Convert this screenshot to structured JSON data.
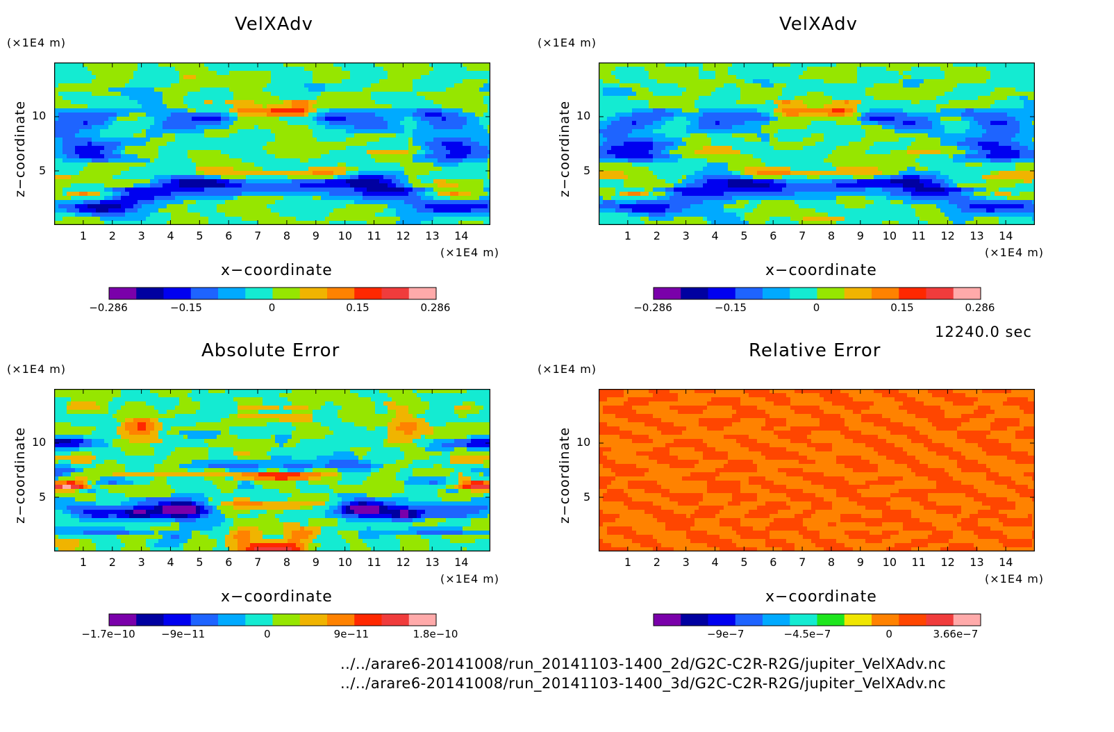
{
  "time_label": "12240.0 sec",
  "file_paths": [
    "../../arare6-20141008/run_20141103-1400_2d/G2C-C2R-R2G/jupiter_VelXAdv.nc",
    "../../arare6-20141008/run_20141103-1400_3d/G2C-C2R-R2G/jupiter_VelXAdv.nc"
  ],
  "chart_data": [
    {
      "type": "heatmap",
      "title": "VelXAdv",
      "xlabel": "x−coordinate",
      "ylabel": "z−coordinate",
      "x_unit": "(×1E4 m)",
      "y_unit": "(×1E4 m)",
      "xlim": [
        0,
        15
      ],
      "ylim": [
        0,
        15
      ],
      "x_ticks": [
        "1",
        "2",
        "3",
        "4",
        "5",
        "6",
        "7",
        "8",
        "9",
        "10",
        "11",
        "12",
        "13",
        "14"
      ],
      "y_ticks": [
        "5",
        "10"
      ],
      "colorbar": {
        "colors": [
          "#7a00aa",
          "#0000a0",
          "#0000f0",
          "#1e64ff",
          "#00aaff",
          "#14ebd2",
          "#96e600",
          "#f0b400",
          "#ff8200",
          "#ff2800",
          "#f03c3c",
          "#ffaaaa"
        ],
        "tick_labels": [
          "−0.286",
          "−0.15",
          "0",
          "0.15",
          "0.286"
        ],
        "tick_values": [
          -0.286,
          -0.15,
          0,
          0.15,
          0.286
        ],
        "range": [
          -0.286,
          0.286
        ]
      }
    },
    {
      "type": "heatmap",
      "title": "VelXAdv",
      "xlabel": "x−coordinate",
      "ylabel": "z−coordinate",
      "x_unit": "(×1E4 m)",
      "y_unit": "(×1E4 m)",
      "xlim": [
        0,
        15
      ],
      "ylim": [
        0,
        15
      ],
      "x_ticks": [
        "1",
        "2",
        "3",
        "4",
        "5",
        "6",
        "7",
        "8",
        "9",
        "10",
        "11",
        "12",
        "13",
        "14"
      ],
      "y_ticks": [
        "5",
        "10"
      ],
      "colorbar": {
        "colors": [
          "#7a00aa",
          "#0000a0",
          "#0000f0",
          "#1e64ff",
          "#00aaff",
          "#14ebd2",
          "#96e600",
          "#f0b400",
          "#ff8200",
          "#ff2800",
          "#f03c3c",
          "#ffaaaa"
        ],
        "tick_labels": [
          "−0.286",
          "−0.15",
          "0",
          "0.15",
          "0.286"
        ],
        "tick_values": [
          -0.286,
          -0.15,
          0,
          0.15,
          0.286
        ],
        "range": [
          -0.286,
          0.286
        ]
      }
    },
    {
      "type": "heatmap",
      "title": "Absolute Error",
      "xlabel": "x−coordinate",
      "ylabel": "z−coordinate",
      "x_unit": "(×1E4 m)",
      "y_unit": "(×1E4 m)",
      "xlim": [
        0,
        15
      ],
      "ylim": [
        0,
        15
      ],
      "x_ticks": [
        "1",
        "2",
        "3",
        "4",
        "5",
        "6",
        "7",
        "8",
        "9",
        "10",
        "11",
        "12",
        "13",
        "14"
      ],
      "y_ticks": [
        "5",
        "10"
      ],
      "colorbar": {
        "colors": [
          "#7a00aa",
          "#0000a0",
          "#0000f0",
          "#1e64ff",
          "#00aaff",
          "#14ebd2",
          "#96e600",
          "#f0b400",
          "#ff8200",
          "#ff2800",
          "#f03c3c",
          "#ffaaaa"
        ],
        "tick_labels": [
          "−1.7e−10",
          "−9e−11",
          "0",
          "9e−11",
          "1.8e−10"
        ],
        "tick_values": [
          -1.7e-10,
          -9e-11,
          0,
          9e-11,
          1.8e-10
        ],
        "range": [
          -1.7e-10,
          1.8e-10
        ]
      }
    },
    {
      "type": "heatmap",
      "title": "Relative Error",
      "xlabel": "x−coordinate",
      "ylabel": "z−coordinate",
      "x_unit": "(×1E4 m)",
      "y_unit": "(×1E4 m)",
      "xlim": [
        0,
        15
      ],
      "ylim": [
        0,
        15
      ],
      "x_ticks": [
        "1",
        "2",
        "3",
        "4",
        "5",
        "6",
        "7",
        "8",
        "9",
        "10",
        "11",
        "12",
        "13",
        "14"
      ],
      "y_ticks": [
        "5",
        "10"
      ],
      "colorbar": {
        "colors": [
          "#7a00aa",
          "#0000a0",
          "#0000f0",
          "#1e64ff",
          "#00aaff",
          "#14ebd2",
          "#1ee61e",
          "#f0e600",
          "#ff8200",
          "#ff4600",
          "#f03c3c",
          "#ffaaaa"
        ],
        "tick_labels": [
          "−9e−7",
          "−4.5e−7",
          "0",
          "3.66e−7"
        ],
        "tick_values": [
          -9e-07,
          -4.5e-07,
          0,
          3.66e-07
        ],
        "range": [
          -1.3e-06,
          5e-07
        ]
      }
    }
  ]
}
